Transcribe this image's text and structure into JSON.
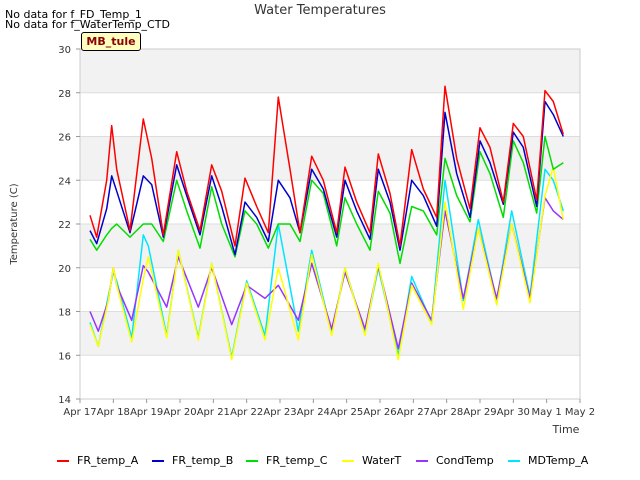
{
  "notes": [
    "No data for f_FD_Temp_1",
    "No data for f_WaterTemp_CTD"
  ],
  "badge": "MB_tule",
  "chart_data": {
    "type": "line",
    "title": "Water Temperatures",
    "xlabel": "Time",
    "ylabel": "Temperature (C)",
    "xlim": [
      0,
      15
    ],
    "ylim": [
      14,
      30
    ],
    "x_ticks": [
      "Apr 17",
      "Apr 18",
      "Apr 19",
      "Apr 20",
      "Apr 21",
      "Apr 22",
      "Apr 23",
      "Apr 24",
      "Apr 25",
      "Apr 26",
      "Apr 27",
      "Apr 28",
      "Apr 29",
      "Apr 30",
      "May 1",
      "May 2"
    ],
    "y_ticks": [
      14,
      16,
      18,
      20,
      22,
      24,
      26,
      28,
      30
    ],
    "grid": true,
    "legend_position": "bottom",
    "series": [
      {
        "name": "FR_temp_A",
        "color": "#ff0000",
        "x": [
          0.3,
          0.5,
          0.8,
          0.95,
          1.1,
          1.5,
          1.9,
          2.15,
          2.5,
          2.9,
          3.2,
          3.6,
          3.95,
          4.25,
          4.65,
          4.95,
          5.3,
          5.65,
          5.95,
          6.3,
          6.6,
          6.95,
          7.3,
          7.7,
          7.95,
          8.3,
          8.7,
          8.95,
          9.3,
          9.6,
          9.95,
          10.3,
          10.7,
          10.95,
          11.3,
          11.7,
          12.0,
          12.3,
          12.7,
          13.0,
          13.3,
          13.7,
          13.95,
          14.2,
          14.5
        ],
        "y": [
          22.4,
          21.4,
          24.0,
          26.5,
          24.5,
          21.7,
          26.8,
          25.0,
          21.5,
          25.3,
          23.5,
          21.7,
          24.7,
          23.5,
          21.0,
          24.1,
          22.8,
          21.6,
          27.8,
          24.5,
          21.6,
          25.1,
          24.0,
          21.6,
          24.6,
          23.0,
          21.6,
          25.2,
          23.4,
          21.0,
          25.4,
          23.6,
          22.3,
          28.3,
          25.0,
          22.7,
          26.4,
          25.5,
          23.0,
          26.6,
          26.0,
          23.1,
          28.1,
          27.6,
          26.1
        ]
      },
      {
        "name": "FR_temp_B",
        "color": "#0000cc",
        "x": [
          0.3,
          0.5,
          0.8,
          0.95,
          1.1,
          1.5,
          1.9,
          2.15,
          2.5,
          2.9,
          3.2,
          3.6,
          3.95,
          4.25,
          4.65,
          4.95,
          5.3,
          5.65,
          5.95,
          6.3,
          6.6,
          6.95,
          7.3,
          7.7,
          7.95,
          8.3,
          8.7,
          8.95,
          9.3,
          9.6,
          9.95,
          10.3,
          10.7,
          10.95,
          11.3,
          11.7,
          12.0,
          12.3,
          12.7,
          13.0,
          13.3,
          13.7,
          13.95,
          14.2,
          14.5
        ],
        "y": [
          21.7,
          21.1,
          22.7,
          24.2,
          23.5,
          21.6,
          24.2,
          23.8,
          21.4,
          24.7,
          23.3,
          21.5,
          24.2,
          22.8,
          20.6,
          23.0,
          22.3,
          21.2,
          24.0,
          23.2,
          21.6,
          24.5,
          23.6,
          21.4,
          24.0,
          22.6,
          21.3,
          24.5,
          23.0,
          20.8,
          24.0,
          23.3,
          21.9,
          27.1,
          24.3,
          22.3,
          25.8,
          24.8,
          22.9,
          26.2,
          25.5,
          22.8,
          27.6,
          27.0,
          26.0
        ]
      },
      {
        "name": "FR_temp_C",
        "color": "#00dd00",
        "x": [
          0.3,
          0.5,
          0.8,
          0.95,
          1.1,
          1.5,
          1.9,
          2.15,
          2.5,
          2.9,
          3.2,
          3.6,
          3.95,
          4.25,
          4.65,
          4.95,
          5.3,
          5.65,
          5.95,
          6.3,
          6.6,
          6.95,
          7.3,
          7.7,
          7.95,
          8.3,
          8.7,
          8.95,
          9.3,
          9.6,
          9.95,
          10.3,
          10.7,
          10.95,
          11.3,
          11.7,
          12.0,
          12.3,
          12.7,
          13.0,
          13.3,
          13.7,
          13.95,
          14.2,
          14.5
        ],
        "y": [
          21.3,
          20.8,
          21.5,
          21.8,
          22.0,
          21.4,
          22.0,
          22.0,
          21.2,
          24.0,
          22.6,
          20.9,
          23.7,
          22.0,
          20.5,
          22.6,
          22.0,
          20.9,
          22.0,
          22.0,
          21.2,
          24.0,
          23.4,
          21.0,
          23.2,
          22.0,
          20.8,
          23.5,
          22.5,
          20.2,
          22.8,
          22.6,
          21.5,
          25.0,
          23.3,
          22.1,
          25.3,
          24.3,
          22.3,
          25.8,
          24.8,
          22.5,
          26.0,
          24.5,
          24.8
        ]
      },
      {
        "name": "WaterT",
        "color": "#ffff00",
        "x": [
          0.3,
          0.55,
          0.85,
          1.0,
          1.1,
          1.55,
          1.9,
          2.05,
          2.6,
          2.95,
          3.55,
          3.95,
          4.55,
          5.0,
          5.55,
          5.95,
          6.55,
          6.95,
          7.55,
          7.95,
          8.55,
          8.95,
          9.55,
          9.95,
          10.55,
          10.95,
          11.5,
          11.95,
          12.5,
          12.95,
          13.5,
          13.95,
          14.2,
          14.5
        ],
        "y": [
          17.4,
          16.4,
          18.5,
          20.0,
          19.2,
          16.6,
          19.5,
          20.5,
          16.8,
          20.8,
          16.7,
          20.2,
          15.8,
          19.3,
          16.7,
          20.0,
          16.7,
          20.6,
          16.9,
          20.0,
          16.9,
          20.2,
          15.8,
          19.2,
          17.4,
          23.0,
          18.1,
          21.8,
          18.3,
          22.0,
          18.4,
          23.3,
          24.6,
          22.2
        ]
      },
      {
        "name": "CondTemp",
        "color": "#9933ff",
        "x": [
          0.3,
          0.55,
          0.85,
          1.0,
          1.1,
          1.55,
          1.9,
          2.05,
          2.6,
          2.95,
          3.55,
          3.95,
          4.55,
          5.0,
          5.55,
          5.95,
          6.55,
          6.95,
          7.55,
          7.95,
          8.55,
          8.95,
          9.55,
          9.95,
          10.55,
          10.95,
          11.5,
          11.95,
          12.5,
          12.95,
          13.5,
          13.95,
          14.2,
          14.5
        ],
        "y": [
          18.0,
          17.1,
          18.5,
          20.0,
          19.2,
          17.6,
          20.1,
          19.8,
          18.2,
          20.5,
          18.2,
          20.0,
          17.4,
          19.2,
          18.6,
          19.2,
          17.6,
          20.2,
          17.2,
          19.8,
          17.2,
          20.1,
          16.3,
          19.3,
          17.6,
          22.6,
          18.6,
          21.8,
          18.6,
          22.0,
          18.6,
          23.2,
          22.6,
          22.2
        ]
      },
      {
        "name": "MDTemp_A",
        "color": "#00e5ff",
        "x": [
          0.3,
          0.55,
          0.85,
          1.0,
          1.1,
          1.55,
          1.9,
          2.05,
          2.6,
          2.95,
          3.55,
          3.95,
          4.55,
          5.0,
          5.55,
          5.95,
          6.55,
          6.95,
          7.55,
          7.95,
          8.55,
          8.95,
          9.55,
          9.95,
          10.55,
          10.95,
          11.5,
          11.95,
          12.5,
          12.95,
          13.5,
          13.95,
          14.2,
          14.5
        ],
        "y": [
          17.5,
          16.4,
          18.7,
          19.8,
          19.4,
          16.8,
          21.5,
          21.0,
          16.9,
          20.8,
          16.8,
          20.2,
          15.9,
          19.4,
          16.9,
          22.0,
          17.1,
          20.8,
          17.0,
          20.0,
          17.0,
          20.0,
          16.0,
          19.6,
          17.5,
          24.0,
          18.5,
          22.2,
          18.5,
          22.6,
          18.7,
          24.5,
          24.0,
          22.6
        ]
      }
    ]
  }
}
